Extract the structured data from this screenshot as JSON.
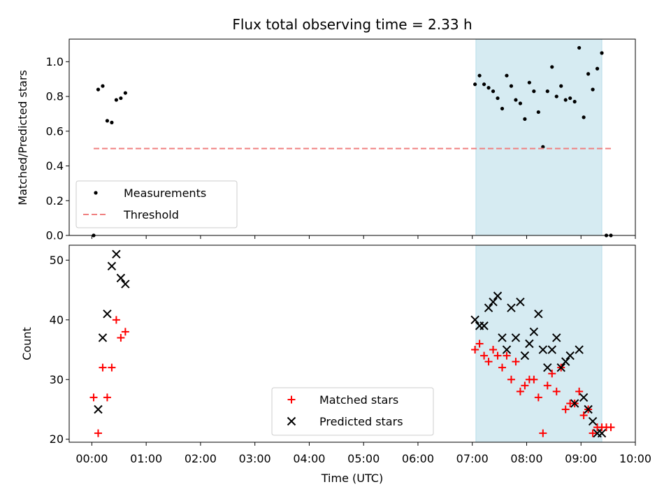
{
  "chart_data": [
    {
      "type": "scatter",
      "title": "Flux total observing time = 2.33 h",
      "xlabel": "",
      "ylabel": "Matched/Predicted stars",
      "ylim": [
        0.0,
        1.13
      ],
      "yticks": [
        "0.0",
        "0.2",
        "0.4",
        "0.6",
        "0.8",
        "1.0"
      ],
      "xlim": [
        "-00:25",
        "10:00"
      ],
      "shaded_span": {
        "x0": "07:04",
        "x1": "09:23",
        "color": "#add8e6"
      },
      "legend": {
        "position": "lower-left"
      },
      "series": [
        {
          "name": "Measurements",
          "marker": "dot",
          "color": "#000000",
          "x": [
            "00:02",
            "00:07",
            "00:12",
            "00:17",
            "00:22",
            "00:27",
            "00:32",
            "00:37",
            "07:03",
            "07:08",
            "07:13",
            "07:18",
            "07:23",
            "07:28",
            "07:33",
            "07:38",
            "07:43",
            "07:48",
            "07:53",
            "07:58",
            "08:03",
            "08:08",
            "08:13",
            "08:18",
            "08:23",
            "08:28",
            "08:33",
            "08:38",
            "08:43",
            "08:48",
            "08:53",
            "08:58",
            "09:03",
            "09:08",
            "09:13",
            "09:18",
            "09:23",
            "09:28",
            "09:33"
          ],
          "y": [
            0.0,
            0.84,
            0.86,
            0.66,
            0.65,
            0.78,
            0.79,
            0.82,
            0.87,
            0.92,
            0.87,
            0.85,
            0.83,
            0.79,
            0.73,
            0.92,
            0.86,
            0.78,
            0.76,
            0.67,
            0.88,
            0.83,
            0.71,
            0.51,
            0.83,
            0.97,
            0.8,
            0.86,
            0.78,
            0.79,
            0.77,
            1.08,
            0.68,
            0.93,
            0.84,
            0.96,
            1.05,
            0.0,
            0.0
          ]
        },
        {
          "name": "Threshold",
          "line": "dashed",
          "color": "#f08080",
          "x": [
            "00:02",
            "09:33"
          ],
          "y": [
            0.5,
            0.5
          ]
        }
      ]
    },
    {
      "type": "scatter",
      "title": "",
      "xlabel": "Time (UTC)",
      "ylabel": "Count",
      "ylim": [
        19.5,
        52.5
      ],
      "yticks": [
        "20",
        "30",
        "40",
        "50"
      ],
      "xlim": [
        "-00:25",
        "10:00"
      ],
      "xticks": [
        "00:00",
        "01:00",
        "02:00",
        "03:00",
        "04:00",
        "05:00",
        "06:00",
        "07:00",
        "08:00",
        "09:00",
        "10:00"
      ],
      "shaded_span": {
        "x0": "07:04",
        "x1": "09:23",
        "color": "#add8e6"
      },
      "legend": {
        "position": "lower-center"
      },
      "series": [
        {
          "name": "Matched stars",
          "marker": "plus",
          "color": "#ff0000",
          "x": [
            "00:02",
            "00:07",
            "00:12",
            "00:17",
            "00:22",
            "00:27",
            "00:32",
            "00:37",
            "07:03",
            "07:08",
            "07:13",
            "07:18",
            "07:23",
            "07:28",
            "07:33",
            "07:38",
            "07:43",
            "07:48",
            "07:53",
            "07:58",
            "08:03",
            "08:08",
            "08:13",
            "08:18",
            "08:23",
            "08:28",
            "08:33",
            "08:38",
            "08:43",
            "08:48",
            "08:53",
            "08:58",
            "09:03",
            "09:08",
            "09:13",
            "09:18",
            "09:23",
            "09:28",
            "09:33"
          ],
          "y": [
            27,
            21,
            32,
            27,
            32,
            40,
            37,
            38,
            35,
            36,
            34,
            33,
            35,
            34,
            32,
            34,
            30,
            33,
            28,
            29,
            30,
            30,
            27,
            21,
            29,
            31,
            28,
            32,
            25,
            26,
            26,
            28,
            24,
            25,
            21,
            22,
            22,
            22,
            22
          ]
        },
        {
          "name": "Predicted stars",
          "marker": "x",
          "color": "#000000",
          "x": [
            "00:07",
            "00:12",
            "00:17",
            "00:22",
            "00:27",
            "00:32",
            "00:37",
            "07:03",
            "07:08",
            "07:13",
            "07:18",
            "07:23",
            "07:28",
            "07:33",
            "07:38",
            "07:43",
            "07:48",
            "07:53",
            "07:58",
            "08:03",
            "08:08",
            "08:13",
            "08:18",
            "08:23",
            "08:28",
            "08:33",
            "08:38",
            "08:43",
            "08:48",
            "08:53",
            "08:58",
            "09:03",
            "09:08",
            "09:13",
            "09:18",
            "09:23"
          ],
          "y": [
            25,
            37,
            41,
            49,
            51,
            47,
            46,
            40,
            39,
            39,
            42,
            43,
            44,
            37,
            35,
            42,
            37,
            43,
            34,
            36,
            38,
            41,
            35,
            32,
            35,
            37,
            32,
            33,
            34,
            26,
            35,
            27,
            25,
            23,
            21,
            21
          ]
        }
      ]
    }
  ]
}
